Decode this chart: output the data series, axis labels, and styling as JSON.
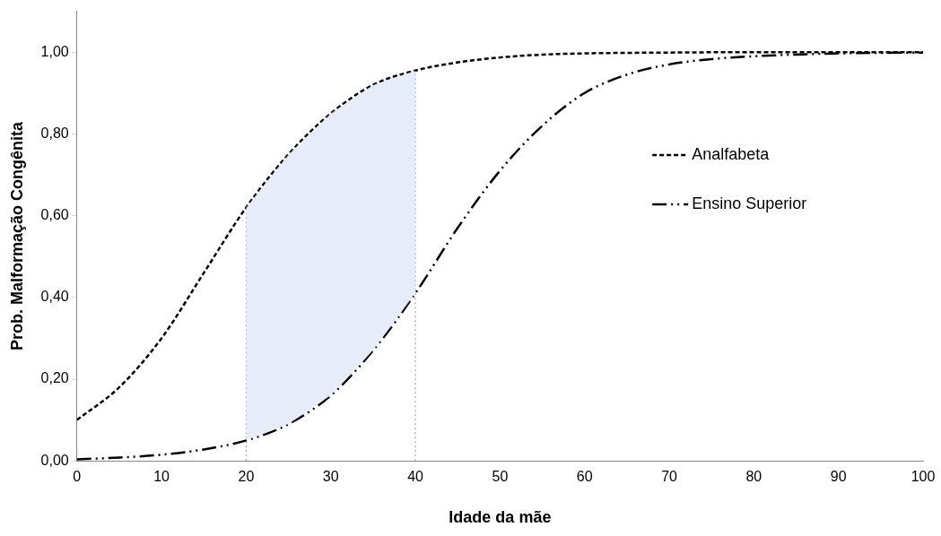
{
  "chart_data": {
    "type": "line",
    "xlabel": "Idade da mãe",
    "ylabel": "Prob. Malformação Congênita",
    "xlim": [
      0,
      100
    ],
    "xticks": [
      0,
      10,
      20,
      30,
      40,
      50,
      60,
      70,
      80,
      90,
      100
    ],
    "ylim": [
      0,
      1.1
    ],
    "yticks": [
      {
        "value": 0,
        "label": "0,00"
      },
      {
        "value": 0.2,
        "label": "0,20"
      },
      {
        "value": 0.4,
        "label": "0,40"
      },
      {
        "value": 0.6,
        "label": "0,60"
      },
      {
        "value": 0.8,
        "label": "0,80"
      },
      {
        "value": 1,
        "label": "1,00"
      }
    ],
    "grid": false,
    "legend": "right",
    "marker": "none",
    "ref_lines": [
      {
        "axis": "x",
        "value": 20,
        "color": "#8c8c8c",
        "line_style": "dotted"
      },
      {
        "axis": "x",
        "value": 40,
        "color": "#8c8c8c",
        "line_style": "dotted"
      }
    ],
    "series": [
      {
        "name": "Analfabeta",
        "color": "#000000",
        "line_style": "dashed",
        "x": [
          0,
          5,
          10,
          15,
          20,
          25,
          30,
          35,
          40,
          45,
          50,
          55,
          60,
          70,
          80,
          90,
          100
        ],
        "values": [
          0.1,
          0.18,
          0.3,
          0.46,
          0.62,
          0.75,
          0.85,
          0.92,
          0.955,
          0.975,
          0.987,
          0.994,
          0.997,
          0.999,
          1.0,
          1.0,
          1.0
        ],
        "lower": [
          null,
          null,
          null,
          null,
          0.05,
          0.09,
          0.16,
          0.27,
          0.41,
          null,
          null,
          null,
          null,
          null,
          null,
          null,
          null
        ],
        "upper": [
          null,
          null,
          null,
          null,
          0.62,
          0.75,
          0.85,
          0.92,
          0.955,
          null,
          null,
          null,
          null,
          null,
          null,
          null,
          null
        ]
      },
      {
        "name": "Ensino Superior",
        "color": "#000000",
        "line_style": "dashdot",
        "x": [
          0,
          5,
          10,
          15,
          20,
          25,
          30,
          35,
          40,
          45,
          50,
          55,
          60,
          65,
          70,
          75,
          80,
          90,
          100
        ],
        "values": [
          0.004,
          0.008,
          0.015,
          0.028,
          0.05,
          0.09,
          0.16,
          0.27,
          0.41,
          0.57,
          0.71,
          0.82,
          0.9,
          0.945,
          0.97,
          0.983,
          0.99,
          0.997,
          0.999
        ]
      }
    ]
  }
}
